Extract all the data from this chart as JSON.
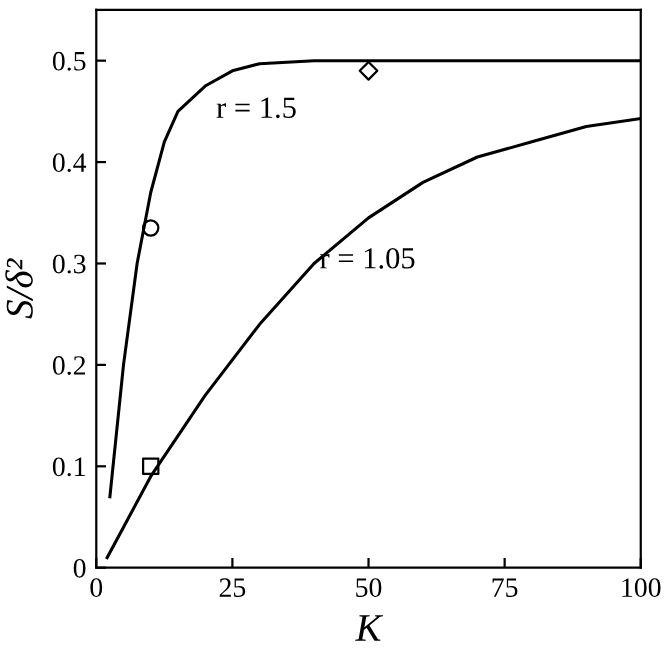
{
  "chart_data": {
    "type": "line",
    "xlabel": "K",
    "ylabel": "S/δ²",
    "xlim": [
      0,
      100
    ],
    "ylim": [
      0,
      0.55
    ],
    "xticks": [
      0,
      25,
      50,
      75,
      100
    ],
    "yticks": [
      0,
      0.1,
      0.2,
      0.3,
      0.4,
      0.5
    ],
    "grid": false,
    "legend": false,
    "marker": "none",
    "series": [
      {
        "color": "#000000",
        "x": [
          2.5,
          5,
          7.5,
          10,
          12.5,
          15,
          20,
          25,
          30,
          40,
          60,
          100
        ],
        "values": [
          0.07,
          0.2,
          0.3,
          0.37,
          0.42,
          0.45,
          0.475,
          0.49,
          0.497,
          0.5,
          0.5,
          0.5
        ]
      },
      {
        "color": "#000000",
        "x": [
          2,
          5,
          10,
          20,
          30,
          40,
          50,
          60,
          70,
          80,
          90,
          100
        ],
        "values": [
          0.01,
          0.04,
          0.09,
          0.17,
          0.24,
          0.3,
          0.345,
          0.38,
          0.405,
          0.42,
          0.435,
          0.443
        ]
      },
      {
        "type": "scatter",
        "color": "#000000",
        "marker": "circle",
        "x": [
          10
        ],
        "values": [
          0.335
        ]
      },
      {
        "type": "scatter",
        "color": "#000000",
        "marker": "square",
        "x": [
          10
        ],
        "values": [
          0.1
        ]
      },
      {
        "type": "scatter",
        "color": "#000000",
        "marker": "diamond",
        "x": [
          50
        ],
        "values": [
          0.49
        ]
      }
    ],
    "annotations": [
      "r = 1.5",
      "r = 1.05"
    ]
  }
}
